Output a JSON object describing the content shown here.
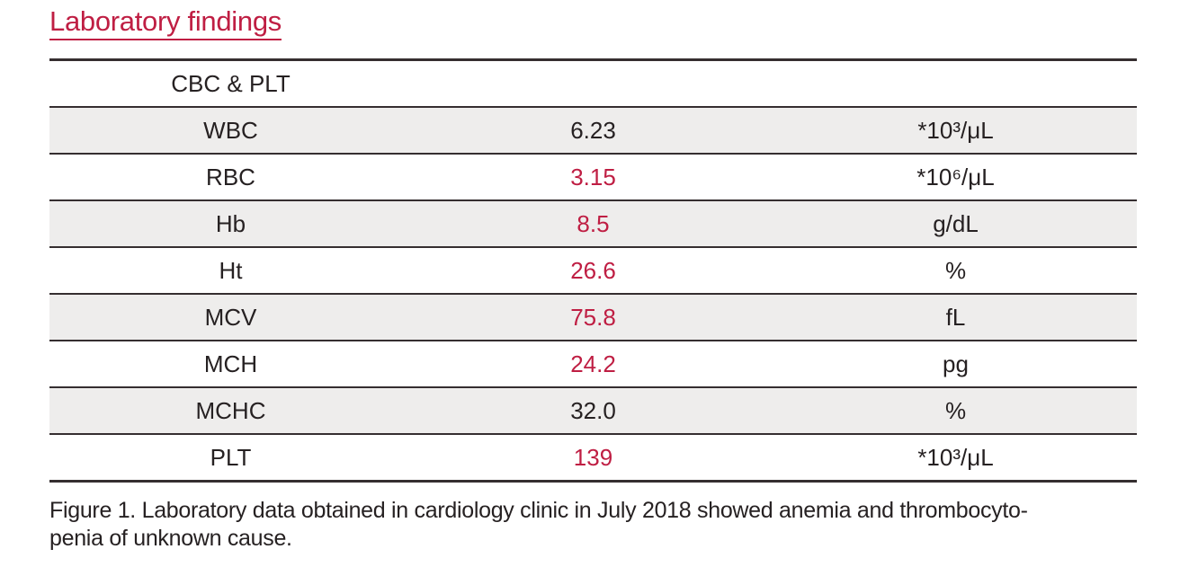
{
  "theme": {
    "page_bg": "#ffffff",
    "accent": "#bf1e43",
    "ink": "#262122",
    "line": "#352e30",
    "shade": "#eeedec"
  },
  "title": "Laboratory findings",
  "table": {
    "group_header": "CBC & PLT",
    "rows": [
      {
        "label": "WBC",
        "value": "6.23",
        "unit": "*10³/μL",
        "value_color": "black",
        "shaded": true
      },
      {
        "label": "RBC",
        "value": "3.15",
        "unit": "*10⁶/μL",
        "value_color": "red",
        "shaded": false
      },
      {
        "label": "Hb",
        "value": "8.5",
        "unit": "g/dL",
        "value_color": "red",
        "shaded": true
      },
      {
        "label": "Ht",
        "value": "26.6",
        "unit": "%",
        "value_color": "red",
        "shaded": false
      },
      {
        "label": "MCV",
        "value": "75.8",
        "unit": "fL",
        "value_color": "red",
        "shaded": true
      },
      {
        "label": "MCH",
        "value": "24.2",
        "unit": "pg",
        "value_color": "red",
        "shaded": false
      },
      {
        "label": "MCHC",
        "value": "32.0",
        "unit": "%",
        "value_color": "black",
        "shaded": true
      },
      {
        "label": "PLT",
        "value": "139",
        "unit": "*10³/μL",
        "value_color": "red",
        "shaded": false
      }
    ]
  },
  "caption": {
    "line1": "Figure 1. Laboratory data obtained in cardiology clinic in July 2018 showed anemia and thrombocyto-",
    "line2": "penia of unknown cause."
  },
  "chart_data": {
    "type": "table",
    "title": "Laboratory findings",
    "section": "CBC & PLT",
    "columns": [
      "parameter",
      "value",
      "unit"
    ],
    "rows": [
      [
        "WBC",
        6.23,
        "*10³/μL"
      ],
      [
        "RBC",
        3.15,
        "*10⁶/μL"
      ],
      [
        "Hb",
        8.5,
        "g/dL"
      ],
      [
        "Ht",
        26.6,
        "%"
      ],
      [
        "MCV",
        75.8,
        "fL"
      ],
      [
        "MCH",
        24.2,
        "pg"
      ],
      [
        "MCHC",
        32.0,
        "%"
      ],
      [
        "PLT",
        139,
        "*10³/μL"
      ]
    ],
    "abnormal_values_shown_in_red": [
      "RBC",
      "Hb",
      "Ht",
      "MCV",
      "MCH",
      "PLT"
    ]
  }
}
